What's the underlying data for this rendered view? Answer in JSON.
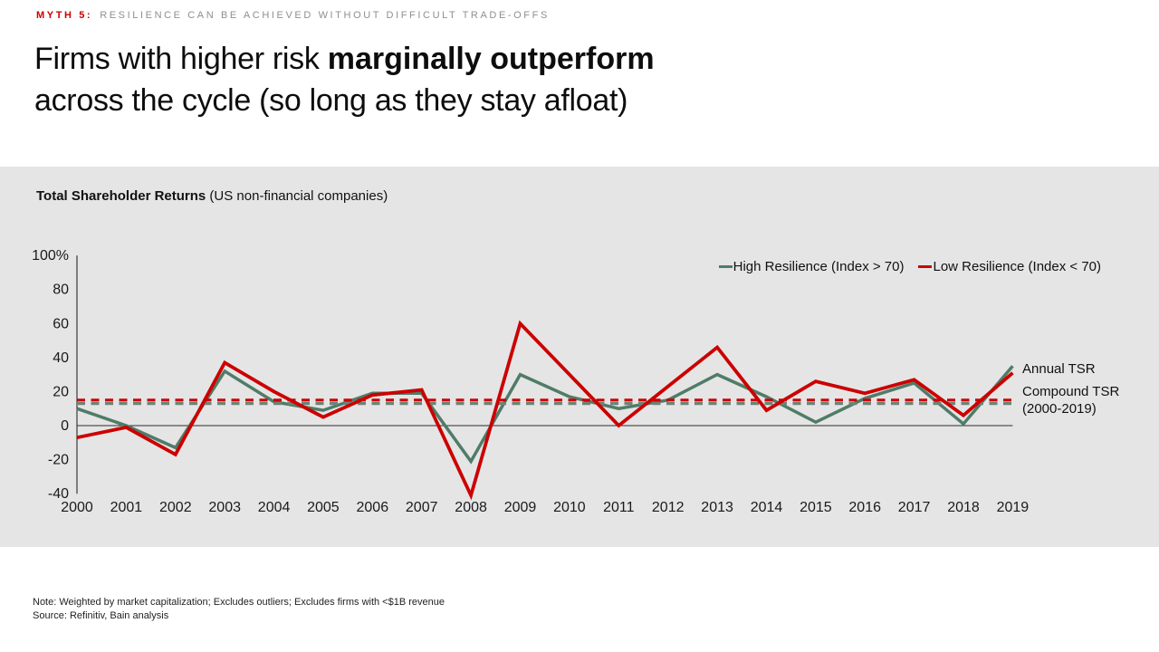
{
  "kicker": {
    "label": "MYTH 5:",
    "text": "RESILIENCE CAN BE ACHIEVED WITHOUT DIFFICULT TRADE-OFFS"
  },
  "title": {
    "line1_regular": "Firms with higher risk ",
    "line1_bold": "marginally outperform",
    "line2": "across the cycle (so long as they stay afloat)"
  },
  "panel": {
    "heading_bold": "Total Shareholder Returns",
    "heading_regular": " (US non-financial companies)"
  },
  "chart_data": {
    "type": "line",
    "title": "Total Shareholder Returns (US non-financial companies)",
    "x": [
      2000,
      2001,
      2002,
      2003,
      2004,
      2005,
      2006,
      2007,
      2008,
      2009,
      2010,
      2011,
      2012,
      2013,
      2014,
      2015,
      2016,
      2017,
      2018,
      2019
    ],
    "ylim": [
      -40,
      100
    ],
    "y_ticks": [
      {
        "label": "100%",
        "value": 100
      },
      {
        "label": "80",
        "value": 80
      },
      {
        "label": "60",
        "value": 60
      },
      {
        "label": "40",
        "value": 40
      },
      {
        "label": "20",
        "value": 20
      },
      {
        "label": "0",
        "value": 0
      },
      {
        "label": "-20",
        "value": -20
      },
      {
        "label": "-40",
        "value": -40
      }
    ],
    "series": [
      {
        "name": "High Resilience (Index > 70)",
        "color": "#4f7c68",
        "values": [
          10,
          0,
          -13,
          32,
          14,
          9,
          19,
          19,
          -21,
          30,
          17,
          10,
          15,
          30,
          17,
          2,
          16,
          25,
          1,
          35
        ]
      },
      {
        "name": "Low Resilience (Index < 70)",
        "color": "#cc0000",
        "values": [
          -7,
          -1,
          -17,
          37,
          20,
          5,
          18,
          21,
          -41,
          60,
          30,
          0,
          23,
          46,
          9,
          26,
          19,
          27,
          6,
          31
        ]
      }
    ],
    "compound_lines": [
      {
        "name": "Low Resilience compound TSR",
        "color": "#cc0000",
        "value": 15
      },
      {
        "name": "High Resilience compound TSR",
        "color": "#6e8278",
        "value": 13
      }
    ],
    "legend": [
      {
        "label": "High Resilience (Index > 70)",
        "color": "#4f7c68"
      },
      {
        "label": "Low Resilience (Index < 70)",
        "color": "#cc0000"
      }
    ],
    "annotations": {
      "annual": "Annual TSR",
      "compound": "Compound TSR",
      "compound_range": "(2000-2019)"
    },
    "grid": false,
    "legend_position": "top-right"
  },
  "colors": {
    "accent_red": "#cc0000",
    "sage_green": "#4f7c68",
    "panel_gray": "#e5e5e5"
  },
  "footnote": {
    "note": "Note: Weighted by market capitalization; Excludes outliers; Excludes firms with <$1B revenue",
    "source": "Source: Refinitiv, Bain analysis"
  }
}
